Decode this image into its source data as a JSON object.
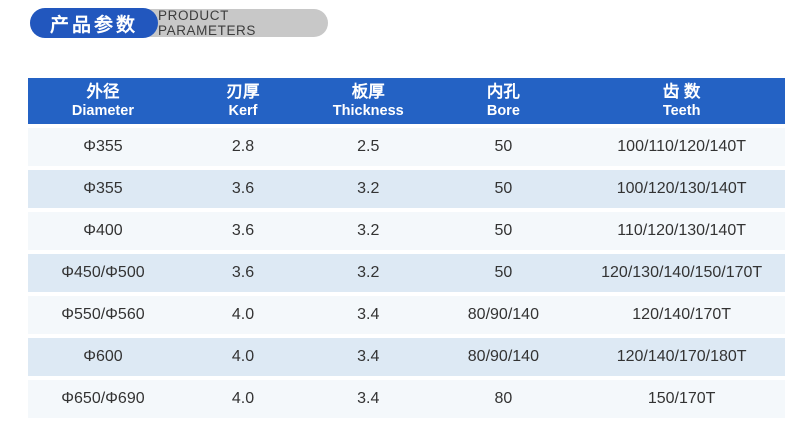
{
  "header": {
    "title_cn": "产品参数",
    "title_en": "PRODUCT PARAMETERS"
  },
  "table": {
    "columns": [
      {
        "cn": "外径",
        "en": "Diameter"
      },
      {
        "cn": "刃厚",
        "en": "Kerf"
      },
      {
        "cn": "板厚",
        "en": "Thickness"
      },
      {
        "cn": "内孔",
        "en": "Bore"
      },
      {
        "cn": "齿 数",
        "en": "Teeth"
      }
    ],
    "rows": [
      [
        "Φ355",
        "2.8",
        "2.5",
        "50",
        "100/110/120/140T"
      ],
      [
        "Φ355",
        "3.6",
        "3.2",
        "50",
        "100/120/130/140T"
      ],
      [
        "Φ400",
        "3.6",
        "3.2",
        "50",
        "110/120/130/140T"
      ],
      [
        "Φ450/Φ500",
        "3.6",
        "3.2",
        "50",
        "120/130/140/150/170T"
      ],
      [
        "Φ550/Φ560",
        "4.0",
        "3.4",
        "80/90/140",
        "120/140/170T"
      ],
      [
        "Φ600",
        "4.0",
        "3.4",
        "80/90/140",
        "120/140/170/180T"
      ],
      [
        "Φ650/Φ690",
        "4.0",
        "3.4",
        "80",
        "150/170T"
      ]
    ]
  },
  "colors": {
    "header_blue": "#2462c4",
    "pill_blue": "#2257be",
    "pill_gray": "#c8c8c8",
    "row_light": "#f4f8fb",
    "row_blue": "#dde9f4",
    "text_dark": "#333333"
  }
}
